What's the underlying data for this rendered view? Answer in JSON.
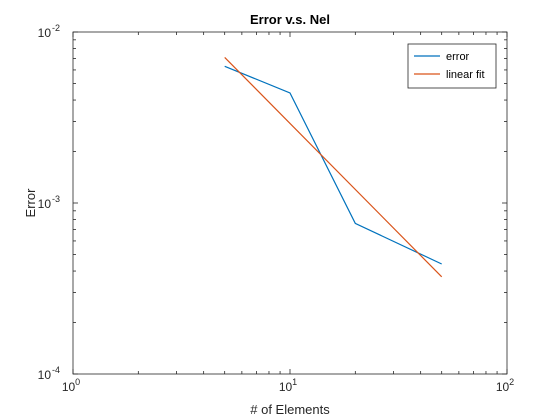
{
  "chart_data": {
    "type": "line",
    "title": "Error v.s. Nel",
    "xlabel": "# of Elements",
    "ylabel": "Error",
    "xscale": "log",
    "yscale": "log",
    "xlim": [
      1,
      100
    ],
    "ylim": [
      0.0001,
      0.01
    ],
    "grid": false,
    "legend_position": "top-right",
    "x_ticks": [
      {
        "value": 1,
        "base": "10",
        "exp": "0"
      },
      {
        "value": 10,
        "base": "10",
        "exp": "1"
      },
      {
        "value": 100,
        "base": "10",
        "exp": "2"
      }
    ],
    "y_ticks": [
      {
        "value": 0.0001,
        "base": "10",
        "exp": "-4"
      },
      {
        "value": 0.001,
        "base": "10",
        "exp": "-3"
      },
      {
        "value": 0.01,
        "base": "10",
        "exp": "-2"
      }
    ],
    "series": [
      {
        "name": "error",
        "color": "#0072BD",
        "x": [
          5,
          10,
          20,
          50
        ],
        "y": [
          0.0063,
          0.0044,
          0.00076,
          0.00044
        ]
      },
      {
        "name": "linear fit",
        "color": "#D95319",
        "x": [
          5,
          50
        ],
        "y": [
          0.0071,
          0.00037
        ]
      }
    ]
  }
}
